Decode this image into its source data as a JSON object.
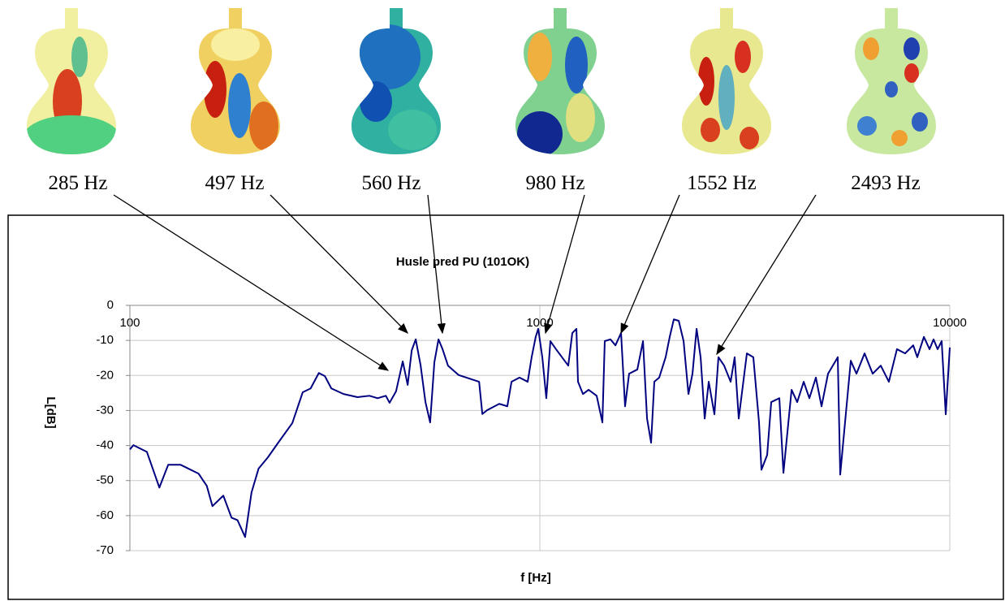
{
  "chart_data": {
    "type": "line",
    "title": "Husle pred PU (101OK)",
    "xlabel": "f [Hz]",
    "ylabel": "L[dB]",
    "annotations": [
      "285 Hz",
      "497 Hz",
      "560 Hz",
      "980 Hz",
      "1552 Hz",
      "2493 Hz"
    ],
    "log_x": true,
    "grid": true,
    "color": "#000080",
    "xlim": [
      100,
      10000
    ],
    "xticks": [
      100,
      1000,
      10000
    ],
    "ylim": [
      -70,
      0
    ],
    "yticks": [
      0,
      -10,
      -20,
      -30,
      -40,
      -50,
      -60,
      -70
    ],
    "x": [
      100,
      102,
      110,
      118,
      124,
      133,
      147,
      154,
      159,
      169,
      177,
      183,
      191,
      198,
      206,
      217,
      230,
      249,
      264,
      276,
      289,
      299,
      310,
      332,
      359,
      384,
      402,
      421,
      430,
      446,
      463,
      476,
      487,
      498,
      512,
      526,
      540,
      553,
      566,
      579,
      597,
      634,
      711,
      724,
      744,
      796,
      833,
      853,
      892,
      934,
      955,
      977,
      991,
      1014,
      1037,
      1061,
      1095,
      1173,
      1200,
      1228,
      1239,
      1274,
      1315,
      1376,
      1421,
      1440,
      1487,
      1529,
      1578,
      1614,
      1651,
      1729,
      1785,
      1826,
      1868,
      1902,
      1955,
      2027,
      2074,
      2122,
      2182,
      2242,
      2304,
      2357,
      2412,
      2467,
      2524,
      2582,
      2666,
      2727,
      2816,
      2920,
      2987,
      3056,
      3199,
      3317,
      3425,
      3472,
      3585,
      3668,
      3839,
      3928,
      4112,
      4244,
      4402,
      4544,
      4713,
      4866,
      5047,
      5330,
      5404,
      5529,
      5734,
      5920,
      6196,
      6484,
      6786,
      7102,
      7432,
      7780,
      8143,
      8331,
      8646,
      8925,
      9128,
      9339,
      9554,
      9775,
      10000
    ],
    "values": [
      -41.1,
      -39.9,
      -41.8,
      -52,
      -45.5,
      -45.5,
      -48,
      -51.5,
      -57.3,
      -54.3,
      -60.6,
      -61.3,
      -66.1,
      -53.4,
      -46.6,
      -43.4,
      -39.2,
      -33.6,
      -24.8,
      -23.7,
      -19.3,
      -20.2,
      -23.7,
      -25.3,
      -26.2,
      -25.8,
      -26.5,
      -25.8,
      -27.8,
      -24.5,
      -16,
      -22.7,
      -12.8,
      -9.7,
      -17.2,
      -27.6,
      -33.4,
      -16.2,
      -9.7,
      -12.5,
      -17.2,
      -19.9,
      -21.8,
      -31,
      -29.9,
      -28.1,
      -28.8,
      -21.8,
      -20.6,
      -21.8,
      -14.8,
      -9,
      -6.7,
      -14.8,
      -26.5,
      -10.2,
      -12.5,
      -17.2,
      -7.9,
      -6.7,
      -21.8,
      -25.3,
      -24.1,
      -25.8,
      -33.4,
      -10.2,
      -9.7,
      -11.4,
      -7.9,
      -28.8,
      -19.5,
      -18.3,
      -10.2,
      -32.3,
      -39.2,
      -21.8,
      -20.6,
      -14.8,
      -9,
      -4,
      -4.4,
      -10.2,
      -25.3,
      -19.5,
      -6.7,
      -14.8,
      -32.3,
      -21.8,
      -31.1,
      -14.8,
      -17.2,
      -21.8,
      -14.8,
      -32.3,
      -13.7,
      -14.8,
      -33.4,
      -46.9,
      -42.7,
      -27.6,
      -26.5,
      -47.8,
      -24.1,
      -27.6,
      -21.8,
      -26.5,
      -20.6,
      -28.8,
      -19.5,
      -14.8,
      -48.3,
      -35.7,
      -15.8,
      -19.5,
      -13.7,
      -19.5,
      -17.2,
      -21.8,
      -12.5,
      -13.7,
      -11.4,
      -14.8,
      -9,
      -12.5,
      -9.7,
      -12.5,
      -10.2,
      -31.1,
      -12
    ]
  }
}
